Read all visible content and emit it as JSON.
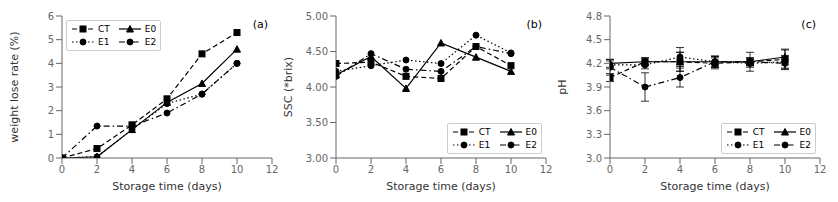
{
  "chart_data": [
    {
      "type": "line",
      "title": "(a)",
      "xlabel": "Storage time (days)",
      "ylabel": "weight lose rate (%)",
      "x": [
        0,
        2,
        4,
        6,
        8,
        10
      ],
      "xlim": [
        0,
        12
      ],
      "xticks": [
        0,
        2,
        4,
        6,
        8,
        10,
        12
      ],
      "ylim": [
        0,
        6
      ],
      "yticks": [
        0,
        1,
        2,
        3,
        4,
        5,
        6
      ],
      "legend": "upper left",
      "series": [
        {
          "name": "CT",
          "color": "black",
          "line_style": "dashed",
          "marker": "square",
          "values": [
            0,
            0.4,
            1.4,
            2.5,
            4.4,
            5.3
          ]
        },
        {
          "name": "E0",
          "color": "black",
          "line_style": "solid",
          "marker": "triangle",
          "values": [
            0,
            0.05,
            1.2,
            2.35,
            3.15,
            4.6
          ]
        },
        {
          "name": "E1",
          "color": "black",
          "line_style": "dotted",
          "marker": "circle",
          "values": [
            0,
            0.05,
            1.2,
            2.3,
            2.7,
            4.0
          ]
        },
        {
          "name": "E2",
          "color": "black",
          "line_style": "dashdot",
          "marker": "circle",
          "values": [
            0,
            1.35,
            1.35,
            1.9,
            2.7,
            4.0
          ]
        }
      ]
    },
    {
      "type": "line",
      "title": "(b)",
      "xlabel": "Storage time (days)",
      "ylabel": "SSC (*brix)",
      "x": [
        0,
        2,
        4,
        6,
        8,
        10
      ],
      "xlim": [
        0,
        12
      ],
      "xticks": [
        0,
        2,
        4,
        6,
        8,
        10,
        12
      ],
      "ylim": [
        3.0,
        5.0
      ],
      "yticks": [
        {
          "value": 3.0,
          "label": "3.00"
        },
        {
          "value": 3.5,
          "label": "3.50"
        },
        {
          "value": 4.0,
          "label": "4.00"
        },
        {
          "value": 4.5,
          "label": "4.50"
        },
        {
          "value": 5.0,
          "label": "5.00"
        }
      ],
      "legend": "lower right",
      "series": [
        {
          "name": "CT",
          "color": "black",
          "line_style": "dashed",
          "marker": "square",
          "values": [
            4.33,
            4.35,
            4.15,
            4.12,
            4.57,
            4.3
          ]
        },
        {
          "name": "E0",
          "color": "black",
          "line_style": "solid",
          "marker": "triangle",
          "values": [
            4.17,
            4.43,
            3.98,
            4.62,
            4.42,
            4.22
          ]
        },
        {
          "name": "E1",
          "color": "black",
          "line_style": "dotted",
          "marker": "circle",
          "values": [
            4.22,
            4.3,
            4.38,
            4.33,
            4.73,
            4.48
          ]
        },
        {
          "name": "E2",
          "color": "black",
          "line_style": "dashdot",
          "marker": "circle",
          "values": [
            4.15,
            4.47,
            4.25,
            4.22,
            4.57,
            4.47
          ]
        }
      ]
    },
    {
      "type": "line",
      "title": "(c)",
      "xlabel": "Storage time (days)",
      "ylabel": "pH",
      "x": [
        0,
        2,
        4,
        6,
        8,
        10
      ],
      "xlim": [
        0,
        12
      ],
      "xticks": [
        0,
        2,
        4,
        6,
        8,
        10,
        12
      ],
      "ylim": [
        3.0,
        4.8
      ],
      "yticks": [
        {
          "value": 3.0,
          "label": "3.0"
        },
        3.3,
        3.6,
        3.9,
        4.2,
        4.5,
        4.8
      ],
      "legend": "lower right",
      "series": [
        {
          "name": "CT",
          "color": "black",
          "line_style": "dashed",
          "marker": "square",
          "values": [
            4.02,
            4.22,
            4.22,
            4.2,
            4.22,
            4.25
          ],
          "yerr": [
            0.05,
            0.05,
            0.12,
            0.07,
            0.05,
            0.12
          ]
        },
        {
          "name": "E0",
          "color": "black",
          "line_style": "solid",
          "marker": "triangle",
          "values": [
            4.2,
            4.22,
            4.22,
            4.22,
            4.22,
            4.28
          ],
          "yerr": [
            0.05,
            0.05,
            0.12,
            0.07,
            0.05,
            0.1
          ]
        },
        {
          "name": "E1",
          "color": "black",
          "line_style": "dotted",
          "marker": "circle",
          "values": [
            4.18,
            4.18,
            4.28,
            4.22,
            4.2,
            4.22
          ],
          "yerr": [
            0.05,
            0.05,
            0.12,
            0.07,
            0.05,
            0.08
          ]
        },
        {
          "name": "E2",
          "color": "black",
          "line_style": "dashdot",
          "marker": "circle",
          "values": [
            4.15,
            3.9,
            4.02,
            4.22,
            4.22,
            4.2
          ],
          "yerr": [
            0.1,
            0.18,
            0.12,
            0.07,
            0.12,
            0.08
          ]
        }
      ]
    }
  ]
}
